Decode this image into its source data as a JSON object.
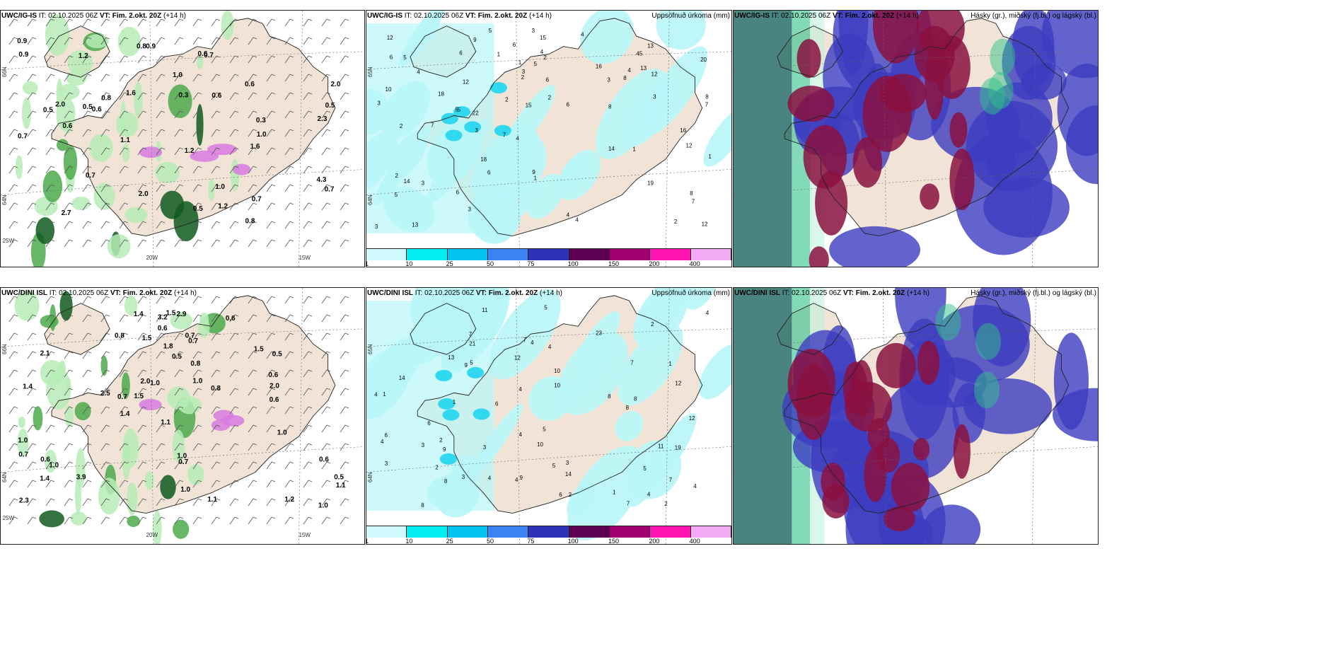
{
  "panels": [
    {
      "id": "top-left",
      "model": "UWC/IG-IS",
      "it_label": "IT:",
      "it_value": "02.10.2025 06Z",
      "vt_label": "VT: Fim. 2.okt. 20Z",
      "lead": "(+14 h)",
      "right_title": "",
      "type": "wind-precip",
      "values": [
        "0.6",
        "0.6",
        "0.3",
        "0.9",
        "0.3",
        "0.5",
        "0.5",
        "0.5",
        "0.9",
        "0.7",
        "0.7",
        "0.8",
        "0.7",
        "1.0",
        "1.2",
        "0.5",
        "0.7",
        "0.9",
        "1.2",
        "1.6",
        "2.0",
        "1.6",
        "2.7",
        "1.0",
        "0.6",
        "0.7",
        "0.8",
        "0.6",
        "1.1",
        "0.6",
        "2.0",
        "1.0",
        "1.2",
        "0.8",
        "2.0",
        "4.3",
        "2.3"
      ],
      "lon_labels": [
        "20W",
        "15W",
        "25W"
      ],
      "lat_labels": [
        "66N",
        "64N"
      ]
    },
    {
      "id": "top-middle",
      "model": "UWC/IG-IS",
      "it_label": "IT:",
      "it_value": "02.10.2025 06Z",
      "vt_label": "VT: Fim. 2.okt. 20Z",
      "lead": "(+14 h)",
      "right_title": "Uppsöfnuð úrkoma (mm)",
      "type": "accum-precip",
      "values": [
        "8",
        "4",
        "6",
        "3",
        "3",
        "4",
        "3",
        "2",
        "12",
        "16",
        "13",
        "12",
        "7",
        "8",
        "5",
        "3",
        "12",
        "13",
        "15",
        "20",
        "18",
        "12",
        "15",
        "19",
        "45",
        "14",
        "18",
        "6",
        "6",
        "10",
        "8",
        "3",
        "9",
        "5",
        "7",
        "2",
        "16",
        "12",
        "13",
        "6",
        "4",
        "3",
        "5",
        "7",
        "1",
        "4",
        "7",
        "3",
        "2",
        "5",
        "3",
        "4",
        "2",
        "1",
        "1",
        "1",
        "2",
        "1",
        "9",
        "5",
        "5",
        "8",
        "3",
        "6",
        "6",
        "6",
        "4",
        "2",
        "2",
        "4",
        "22",
        "14"
      ],
      "lon_labels": [],
      "lat_labels": [
        "65N",
        "64N"
      ],
      "colorbar": {
        "labels": [
          "1",
          "10",
          "25",
          "50",
          "75",
          "100",
          "150",
          "200",
          "400"
        ],
        "colors": [
          "#cffaff",
          "#00eef2",
          "#00c3ee",
          "#3c82f0",
          "#2d32b8",
          "#5e0052",
          "#a0006e",
          "#ff14b4",
          "#f2aaf2"
        ]
      }
    },
    {
      "id": "top-right",
      "model": "UWC/IG-IS",
      "it_label": "IT:",
      "it_value": "02.10.2025 06Z",
      "vt_label": "VT: Fim. 2.okt. 20Z",
      "lead": "(+14 h)",
      "right_title": "Hásky (gr.), miðský (fj.bl.) og lágský (bl.)",
      "type": "clouds"
    },
    {
      "id": "bottom-left",
      "model": "UWC/DINI ISL",
      "it_label": "IT:",
      "it_value": "02.10.2025 06Z",
      "vt_label": "VT: Fim. 2.okt. 20Z",
      "lead": "(+14 h)",
      "right_title": "",
      "type": "wind-precip",
      "values": [
        "0.7",
        "0.7",
        "1.1",
        "2.9",
        "1.0",
        "1.4",
        "1.4",
        "0.6",
        "0.7",
        "1.8",
        "1.0",
        "1.0",
        "0.6",
        "1.5",
        "1.0",
        "2.5",
        "1.4",
        "0.5",
        "1.4",
        "0.6",
        "0.8",
        "0.8",
        "0.5",
        "1.0",
        "1.0",
        "1.1",
        "0.7",
        "1.0",
        "0.6",
        "3.9",
        "2.3",
        "2.1",
        "1.0",
        "0.5",
        "1.5",
        "1.1",
        "1.2",
        "0.7",
        "0.6",
        "1.5",
        "0.8",
        "2.0",
        "1.5",
        "0.6",
        "2.0",
        "3.2"
      ],
      "lon_labels": [
        "20W",
        "15W",
        "25W"
      ],
      "lat_labels": [
        "66N",
        "64N"
      ]
    },
    {
      "id": "bottom-middle",
      "model": "UWC/DINI ISL",
      "it_label": "IT:",
      "it_value": "02.10.2025 06Z",
      "vt_label": "VT: Fim. 2.okt. 20Z",
      "lead": "(+14 h)",
      "right_title": "Uppsöfnuð úrkoma (mm)",
      "type": "accum-precip",
      "values": [
        "6",
        "7",
        "10",
        "7",
        "3",
        "1",
        "2",
        "4",
        "4",
        "4",
        "2",
        "3",
        "3",
        "12",
        "11",
        "8",
        "10",
        "9",
        "12",
        "5",
        "7",
        "21",
        "13",
        "12",
        "8",
        "14",
        "19",
        "11",
        "8",
        "8",
        "6",
        "4",
        "2",
        "4",
        "2",
        "5",
        "3",
        "5",
        "4",
        "4",
        "10",
        "8",
        "7",
        "4",
        "1",
        "1",
        "1",
        "2",
        "23",
        "14",
        "6",
        "9",
        "4",
        "4",
        "5",
        "7",
        "3",
        "5",
        "4",
        "9",
        "6"
      ],
      "lon_labels": [],
      "lat_labels": [
        "65N",
        "64N"
      ],
      "colorbar": {
        "labels": [
          "1",
          "10",
          "25",
          "50",
          "75",
          "100",
          "150",
          "200",
          "400"
        ],
        "colors": [
          "#cffaff",
          "#00eef2",
          "#00c3ee",
          "#3c82f0",
          "#2d32b8",
          "#5e0052",
          "#a0006e",
          "#ff14b4",
          "#f2aaf2"
        ]
      }
    },
    {
      "id": "bottom-right",
      "model": "UWC/DINI ISL",
      "it_label": "IT:",
      "it_value": "02.10.2025 06Z",
      "vt_label": "VT: Fim. 2.okt. 20Z",
      "lead": "(+14 h)",
      "right_title": "Hásky (gr.), miðský (fj.bl.) og lágský (bl.)",
      "type": "clouds"
    }
  ],
  "colors": {
    "land": "#f1e4d6",
    "coast": "#222222",
    "precip_light": "#b6ecb6",
    "precip_mid": "#4caa4c",
    "precip_dark": "#0e5a1e",
    "snow": "#d77ae0",
    "cloud_high": "#2fc28a",
    "cloud_mid": "#8a1040",
    "cloud_low": "#3c3cc0"
  }
}
